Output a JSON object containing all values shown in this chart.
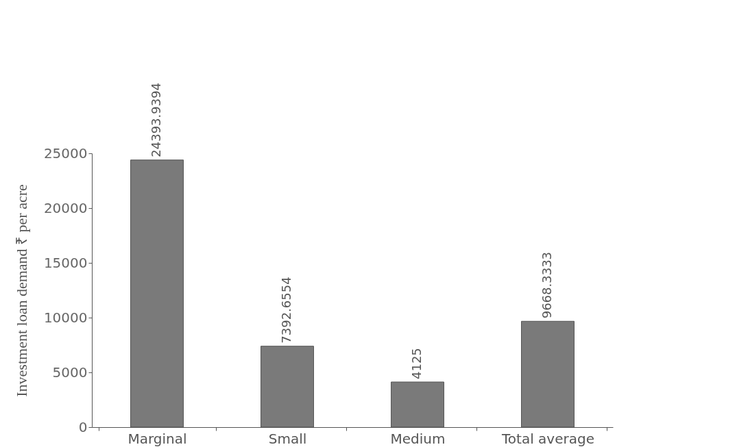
{
  "chart_data": {
    "type": "bar",
    "ylabel": "Investment loan demand ₹ per acre",
    "categories": [
      "Marginal",
      "Small",
      "Medium",
      "Total average"
    ],
    "values": [
      24393.9394,
      7392.6554,
      4125,
      9668.3333
    ],
    "color": "#7a7a7a",
    "ylim": [
      0,
      25000
    ],
    "yticks": [
      0,
      5000,
      10000,
      15000,
      20000,
      25000
    ],
    "grid": false,
    "data_labels": true
  }
}
